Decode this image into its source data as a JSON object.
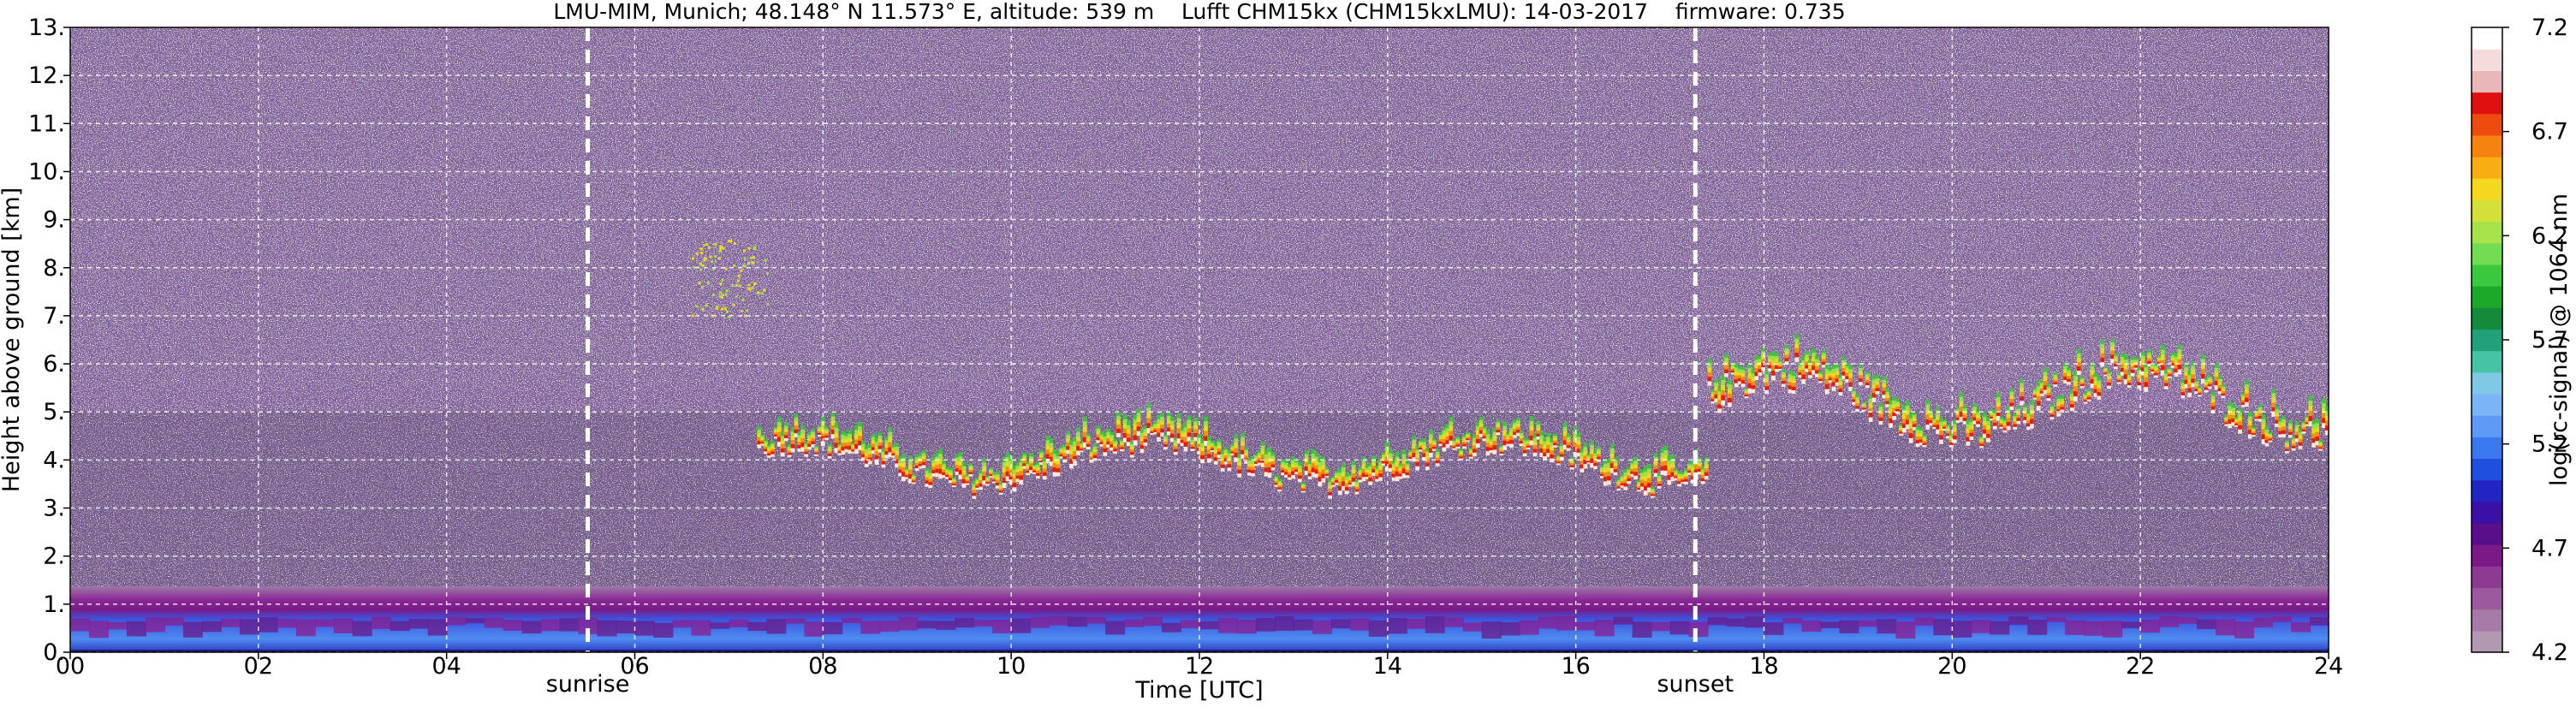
{
  "chart_data": {
    "type": "heatmap",
    "title": "LMU-MIM, Munich; 48.148° N 11.573° E, altitude: 539 m    Lufft CHM15kx (CHM15kxLMU): 14-03-2017    firmware: 0.735",
    "xlabel": "Time [UTC]",
    "ylabel": "Height above ground [km]",
    "colorbar_label": "log(rc-signal) @ 1064 nm",
    "xlim": [
      0,
      24
    ],
    "ylim": [
      0,
      13
    ],
    "clim": [
      4.2,
      7.2
    ],
    "grid": true,
    "x_ticks": [
      "00",
      "02",
      "04",
      "06",
      "08",
      "10",
      "12",
      "14",
      "16",
      "18",
      "20",
      "22",
      "24"
    ],
    "y_ticks": [
      "0.",
      "1.",
      "2.",
      "3.",
      "4.",
      "5.",
      "6.",
      "7.",
      "8.",
      "9.",
      "10.",
      "11.",
      "12.",
      "13."
    ],
    "colorbar_ticks": [
      "4.2",
      "4.7",
      "5.2",
      "5.7",
      "6.2",
      "6.7",
      "7.2"
    ],
    "colormap": [
      "#b099b1",
      "#a67aa6",
      "#9b5a9e",
      "#8c3a92",
      "#7a1a86",
      "#5a0f8a",
      "#3b10a5",
      "#2224c4",
      "#1f4fe0",
      "#3a78f0",
      "#5c9af5",
      "#7bb5f5",
      "#7fc8e6",
      "#46c2a4",
      "#21a07a",
      "#158a3a",
      "#1ea82a",
      "#3cc83e",
      "#72dc52",
      "#a6e24a",
      "#d4e03a",
      "#f3d81f",
      "#f8ae13",
      "#f58310",
      "#ee4c0f",
      "#e01010",
      "#e8b8b8",
      "#f4dcdc",
      "#ffffff"
    ],
    "markers": [
      {
        "label": "sunrise",
        "x": 5.5
      },
      {
        "label": "sunset",
        "x": 17.27
      }
    ],
    "features": [
      {
        "kind": "boundary_layer",
        "x": [
          0,
          24
        ],
        "y": [
          0.0,
          1.3
        ]
      },
      {
        "kind": "cloud_layer",
        "x": [
          7.3,
          17.4
        ],
        "y": [
          3.0,
          5.5
        ]
      },
      {
        "kind": "cloud_layer",
        "x": [
          17.4,
          24
        ],
        "y": [
          3.8,
          7.5
        ]
      },
      {
        "kind": "aerosol_patch",
        "x": [
          6.6,
          7.4
        ],
        "y": [
          7.0,
          8.6
        ]
      }
    ]
  }
}
